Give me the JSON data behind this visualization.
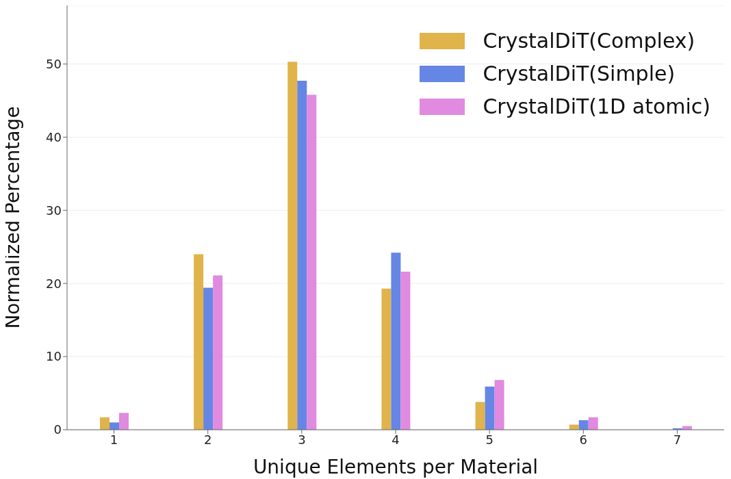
{
  "chart_data": {
    "type": "bar",
    "xlabel": "Unique Elements per Material",
    "ylabel": "Normalized Percentage",
    "categories": [
      "1",
      "2",
      "3",
      "4",
      "5",
      "6",
      "7"
    ],
    "series": [
      {
        "name": "CrystalDiT(Complex)",
        "color": "#e0b44a",
        "values": [
          1.7,
          24.0,
          50.3,
          19.3,
          3.8,
          0.7,
          0
        ]
      },
      {
        "name": "CrystalDiT(Simple)",
        "color": "#6586e4",
        "values": [
          1.0,
          19.4,
          47.7,
          24.2,
          5.9,
          1.3,
          0.2
        ]
      },
      {
        "name": "CrystalDiT(1D atomic)",
        "color": "#e08ae0",
        "values": [
          2.3,
          21.1,
          45.8,
          21.6,
          6.8,
          1.7,
          0.5
        ]
      }
    ],
    "ylim": [
      0,
      58
    ],
    "yticks": [
      0,
      10,
      20,
      30,
      40,
      50
    ],
    "grid": "y",
    "legend": "top right"
  }
}
